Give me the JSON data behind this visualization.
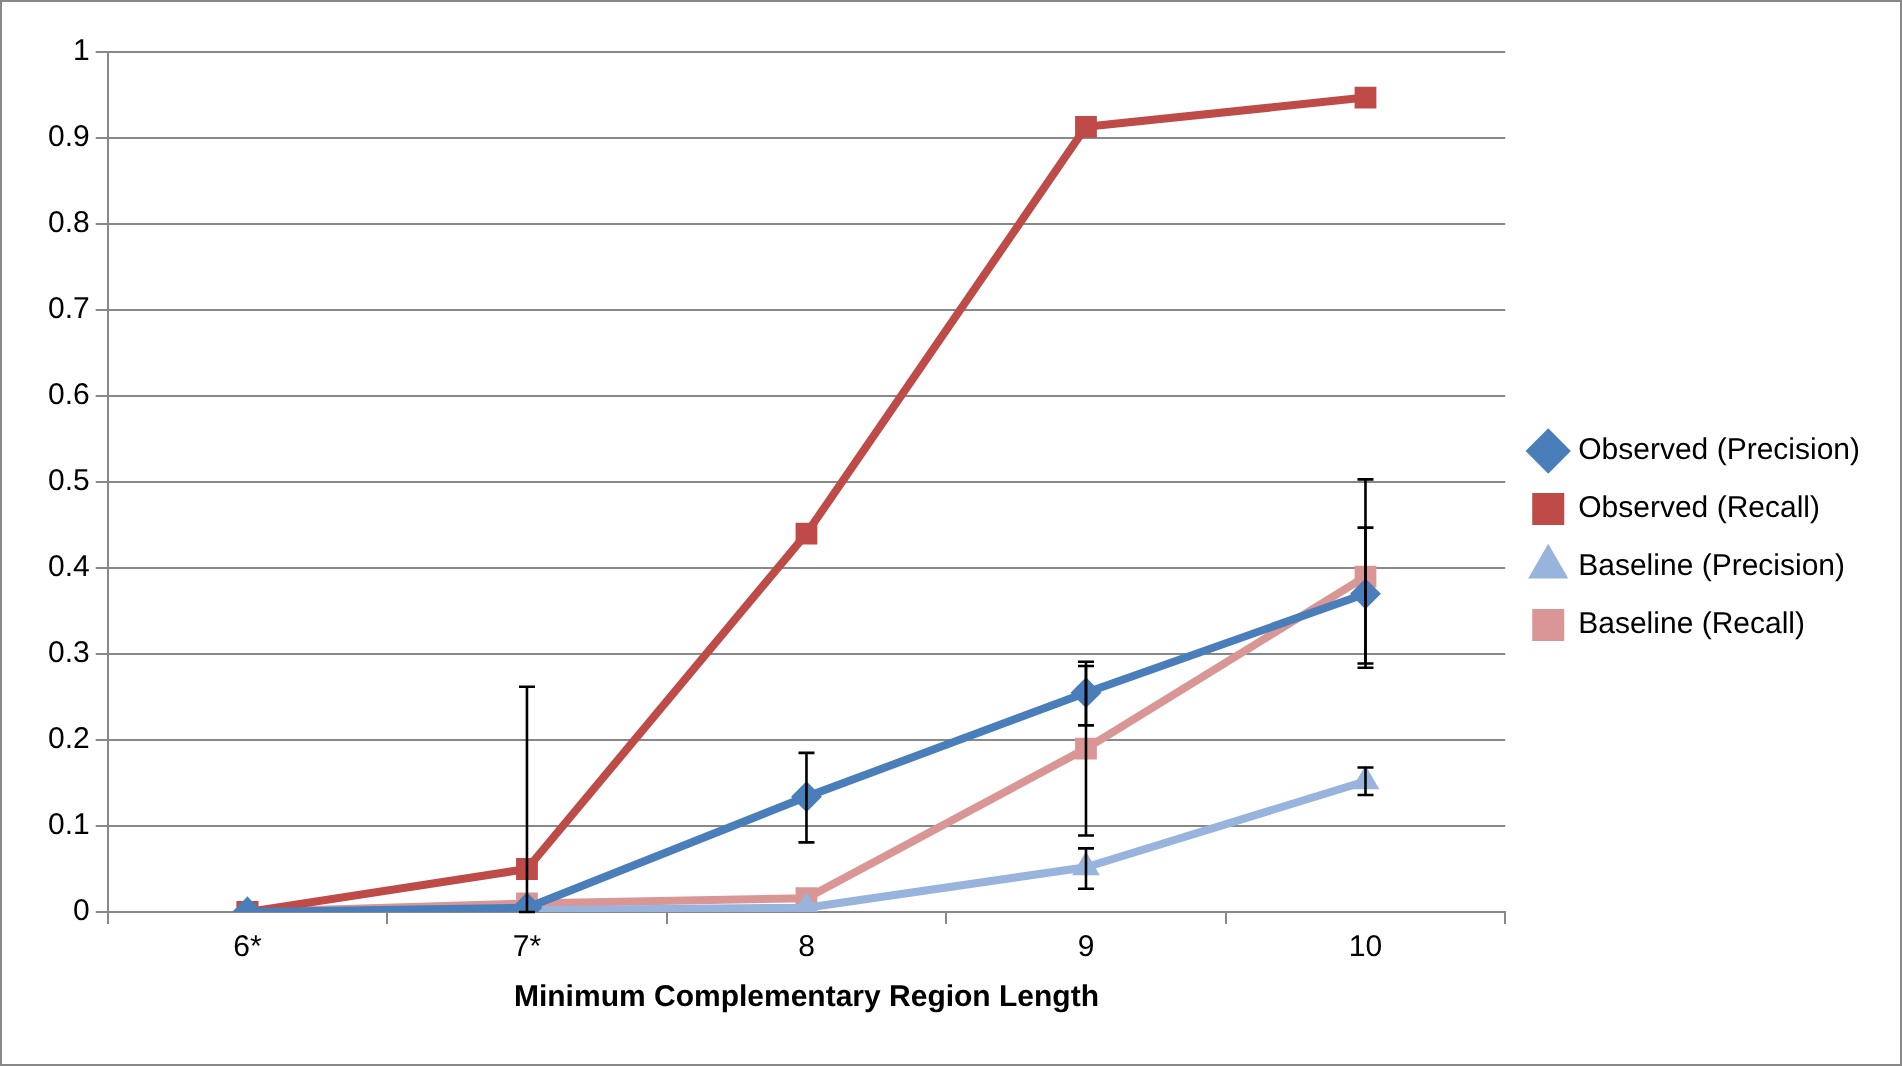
{
  "chart_data": {
    "type": "line",
    "xlabel": "Minimum Complementary Region Length",
    "categories": [
      "6*",
      "7*",
      "8",
      "9",
      "10"
    ],
    "series": [
      {
        "name": "Observed (Precision)",
        "color": "#4a7ebb",
        "marker": "diamond",
        "values": [
          0,
          0.005,
          0.134,
          0.255,
          0.37
        ],
        "errors": [
          null,
          null,
          [
            0.081,
            0.185
          ],
          [
            0.217,
            0.291
          ],
          [
            0.289,
            0.447
          ]
        ]
      },
      {
        "name": "Observed (Recall)",
        "color": "#be4b48",
        "marker": "square",
        "values": [
          0,
          0.05,
          0.44,
          0.913,
          0.947
        ],
        "errors": [
          null,
          [
            0,
            0.262
          ],
          null,
          null,
          null
        ]
      },
      {
        "name": "Baseline (Precision)",
        "color": "#98b4dc",
        "marker": "triangle",
        "values": [
          0,
          0.002,
          0.005,
          0.052,
          0.152
        ],
        "errors": [
          null,
          null,
          null,
          [
            0.027,
            0.074
          ],
          [
            0.136,
            0.168
          ]
        ]
      },
      {
        "name": "Baseline (Recall)",
        "color": "#d99694",
        "marker": "square",
        "values": [
          0,
          0.01,
          0.016,
          0.19,
          0.39
        ],
        "errors": [
          null,
          null,
          null,
          [
            0.089,
            0.286
          ],
          [
            0.284,
            0.503
          ]
        ]
      }
    ],
    "ylim": [
      0,
      1
    ],
    "yticks": [
      0,
      0.1,
      0.2,
      0.3,
      0.4,
      0.5,
      0.6,
      0.7,
      0.8,
      0.9,
      1
    ],
    "grid": "y",
    "legend": "right"
  }
}
